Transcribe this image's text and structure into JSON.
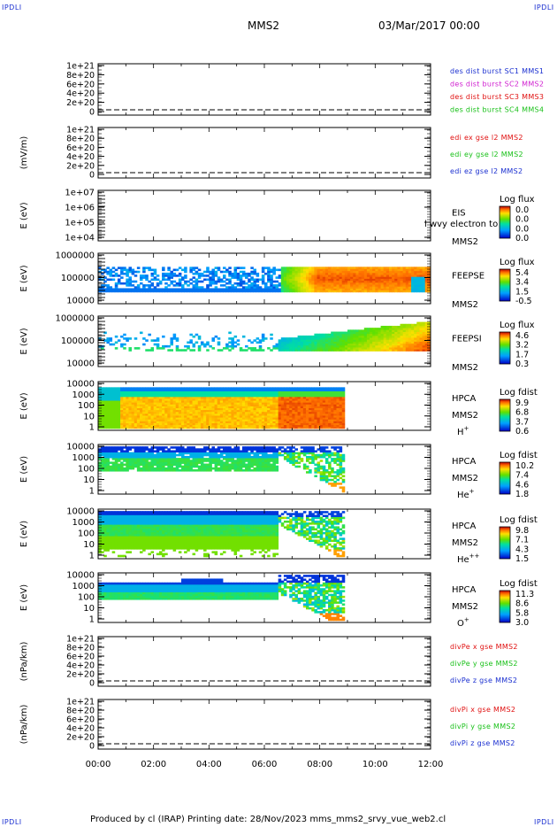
{
  "corners": {
    "tl": "IPDLI",
    "tr": "IPDLI",
    "bl": "IPDLI",
    "br": "IPDLI"
  },
  "header": {
    "title": "MMS2",
    "datetime": "03/Mar/2017 00:00"
  },
  "footer": {
    "text": "Produced by cl (IRAP)   Printing date: 28/Nov/2023   mms_mms2_srvy_vue_web2.cl"
  },
  "time_axis": {
    "ticks": [
      "00:00",
      "02:00",
      "04:00",
      "06:00",
      "08:00",
      "10:00",
      "12:00"
    ]
  },
  "colors": {
    "blue": "#1a2fd0",
    "magenta": "#d020d0",
    "red": "#e01010",
    "green": "#18c018"
  },
  "chart_data": [
    {
      "id": "p1",
      "type": "line",
      "ylabel": "",
      "yticks": [
        "1e+21",
        "8e+20",
        "6e+20",
        "4e+20",
        "2e+20",
        "0"
      ],
      "series": [
        {
          "name": "des dist burst SC1 MMS1",
          "color": "#1a2fd0"
        },
        {
          "name": "des dist burst SC2 MMS2",
          "color": "#d020d0"
        },
        {
          "name": "des dist burst SC3 MMS3",
          "color": "#e01010"
        },
        {
          "name": "des dist burst SC4 MMS4",
          "color": "#18c018"
        }
      ]
    },
    {
      "id": "p2",
      "type": "line",
      "ylabel": "(mV/m)",
      "yticks": [
        "1e+21",
        "8e+20",
        "6e+20",
        "4e+20",
        "2e+20",
        "0"
      ],
      "series": [
        {
          "name": "edi ex gse l2 MMS2",
          "color": "#e01010"
        },
        {
          "name": "edi ey gse l2 MMS2",
          "color": "#18c018"
        },
        {
          "name": "edi ez gse l2 MMS2",
          "color": "#1a2fd0"
        }
      ]
    },
    {
      "id": "p3",
      "type": "heatmap",
      "ylabel": "E (eV)",
      "yticks": [
        "1e+07",
        "1e+06",
        "1e+05",
        "1e+04"
      ],
      "label_lines": [
        "EIS",
        "MMS2"
      ],
      "overlay": "l wvy electron to",
      "cbar_title": "Log flux",
      "cbar_ticks": [
        "0.0",
        "0.0",
        "0.0",
        "0.0"
      ]
    },
    {
      "id": "p4",
      "type": "heatmap",
      "ylabel": "E (eV)",
      "yticks": [
        "1000000",
        "100000",
        "10000"
      ],
      "label_lines": [
        "FEEPSE",
        "MMS2"
      ],
      "cbar_title": "Log flux",
      "cbar_ticks": [
        "5.4",
        "3.4",
        "1.5",
        "-0.5"
      ]
    },
    {
      "id": "p5",
      "type": "heatmap",
      "ylabel": "E (eV)",
      "yticks": [
        "1000000",
        "100000",
        "10000"
      ],
      "label_lines": [
        "FEEPSI",
        "MMS2"
      ],
      "cbar_title": "Log flux",
      "cbar_ticks": [
        "4.6",
        "3.2",
        "1.7",
        "0.3"
      ]
    },
    {
      "id": "p6",
      "type": "heatmap",
      "ylabel": "E (eV)",
      "yticks": [
        "10000",
        "1000",
        "100",
        "10",
        "1"
      ],
      "label_lines": [
        "HPCA",
        "MMS2"
      ],
      "species": "H",
      "species_sup": "+",
      "cbar_title": "Log fdist",
      "cbar_ticks": [
        "9.9",
        "6.8",
        "3.7",
        "0.6"
      ]
    },
    {
      "id": "p7",
      "type": "heatmap",
      "ylabel": "E (eV)",
      "yticks": [
        "10000",
        "1000",
        "100",
        "10",
        "1"
      ],
      "label_lines": [
        "HPCA",
        "MMS2"
      ],
      "species": "He",
      "species_sup": "+",
      "cbar_title": "Log fdist",
      "cbar_ticks": [
        "10.2",
        "7.4",
        "4.6",
        "1.8"
      ]
    },
    {
      "id": "p8",
      "type": "heatmap",
      "ylabel": "E (eV)",
      "yticks": [
        "10000",
        "1000",
        "100",
        "10",
        "1"
      ],
      "label_lines": [
        "HPCA",
        "MMS2"
      ],
      "species": "He",
      "species_sup": "++",
      "cbar_title": "Log fdist",
      "cbar_ticks": [
        "9.8",
        "7.1",
        "4.3",
        "1.5"
      ]
    },
    {
      "id": "p9",
      "type": "heatmap",
      "ylabel": "E (eV)",
      "yticks": [
        "10000",
        "1000",
        "100",
        "10",
        "1"
      ],
      "label_lines": [
        "HPCA",
        "MMS2"
      ],
      "species": "O",
      "species_sup": "+",
      "cbar_title": "Log fdist",
      "cbar_ticks": [
        "11.3",
        "8.6",
        "5.8",
        "3.0"
      ]
    },
    {
      "id": "p10",
      "type": "line",
      "ylabel": "(nPa/km)",
      "yticks": [
        "1e+21",
        "8e+20",
        "6e+20",
        "4e+20",
        "2e+20",
        "0"
      ],
      "series": [
        {
          "name": "divPe x gse MMS2",
          "color": "#e01010"
        },
        {
          "name": "divPe y gse MMS2",
          "color": "#18c018"
        },
        {
          "name": "divPe z gse MMS2",
          "color": "#1a2fd0"
        }
      ]
    },
    {
      "id": "p11",
      "type": "line",
      "ylabel": "(nPa/km)",
      "yticks": [
        "1e+21",
        "8e+20",
        "6e+20",
        "4e+20",
        "2e+20",
        "0"
      ],
      "series": [
        {
          "name": "divPi x gse MMS2",
          "color": "#e01010"
        },
        {
          "name": "divPi y gse MMS2",
          "color": "#18c018"
        },
        {
          "name": "divPi z gse MMS2",
          "color": "#1a2fd0"
        }
      ]
    }
  ]
}
